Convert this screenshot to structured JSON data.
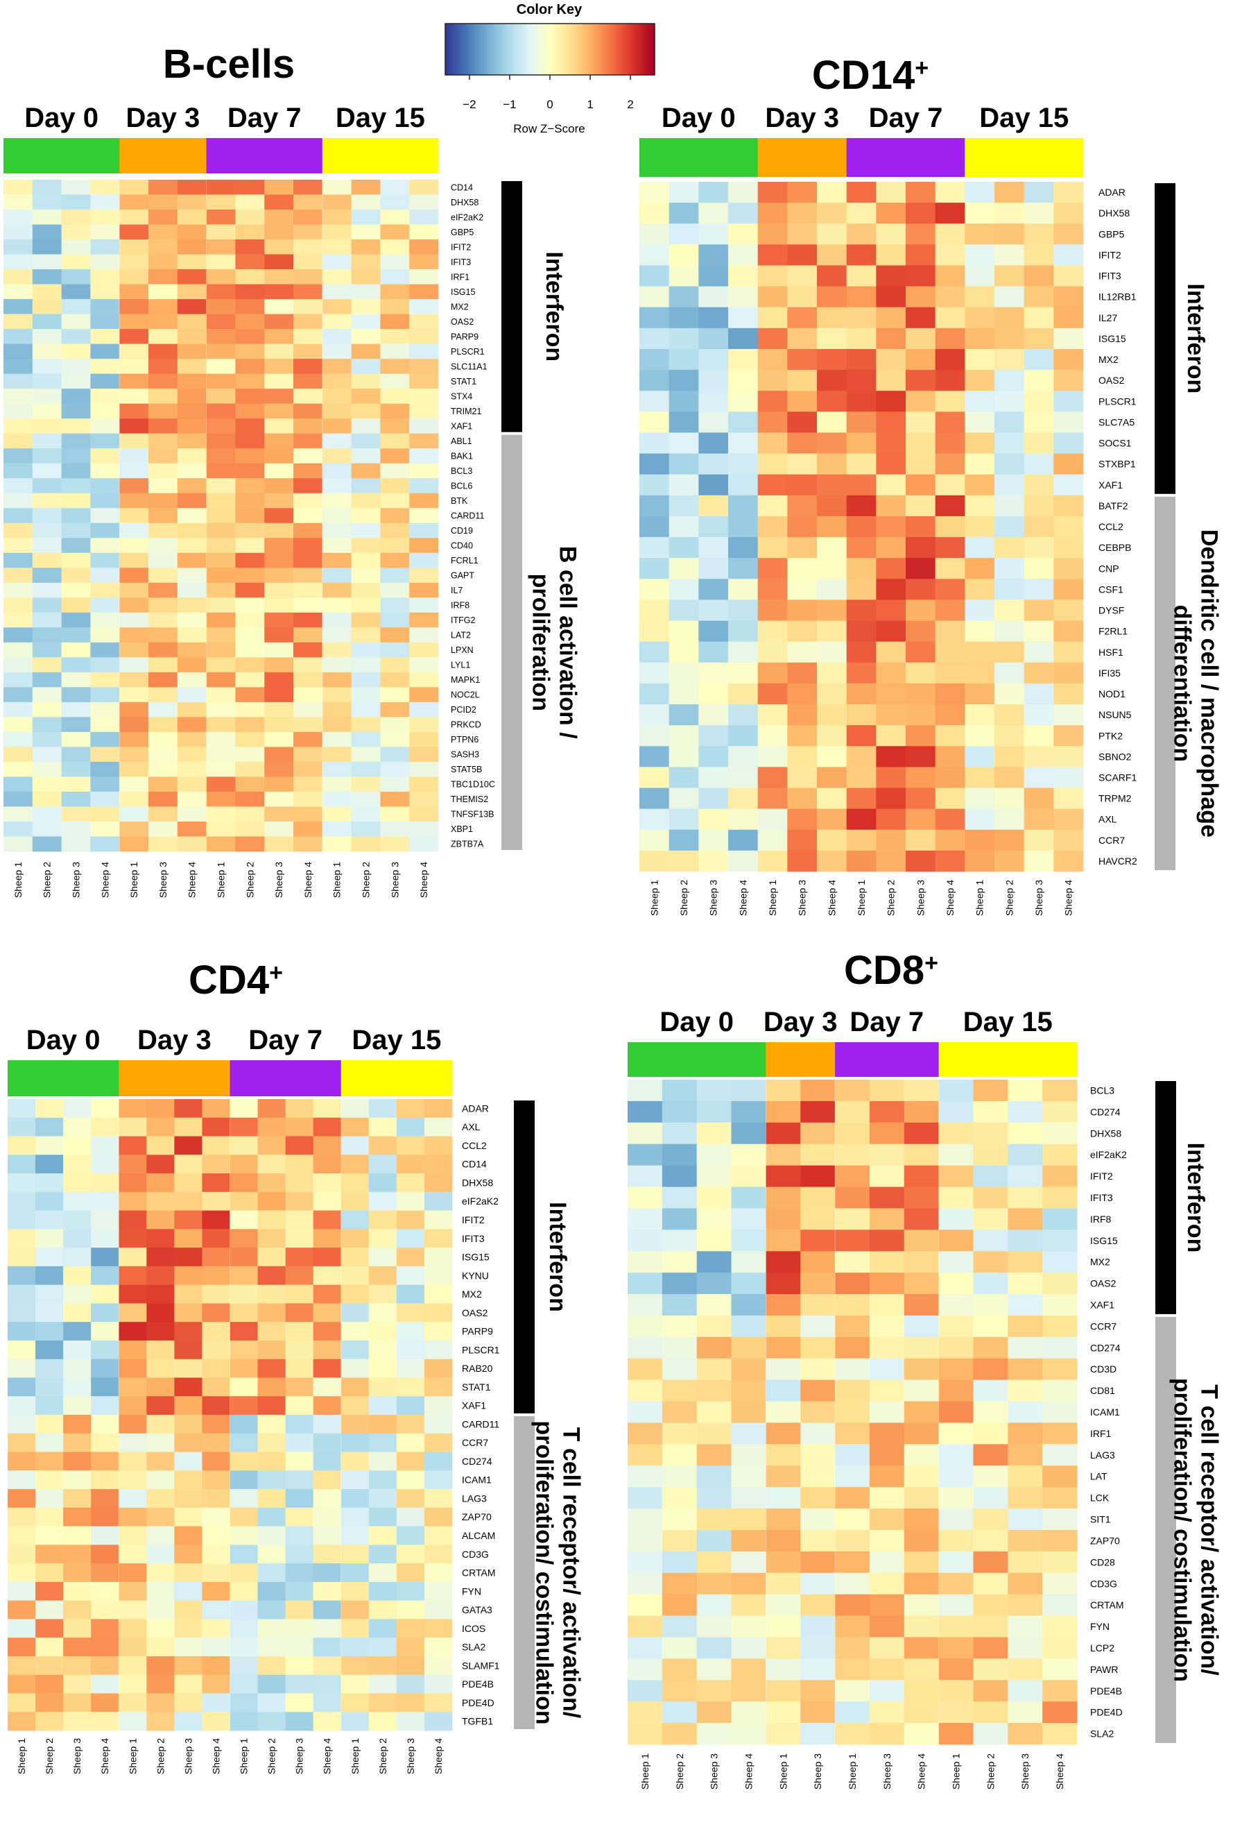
{
  "color_key": {
    "title": "Color Key",
    "xlabel": "Row Z−Score",
    "ticks": [
      "−2",
      "−1",
      "0",
      "1",
      "2"
    ],
    "range": [
      -2.6,
      2.6
    ],
    "colors": [
      "#313695",
      "#4575b4",
      "#74add1",
      "#abd9e9",
      "#e0f3f8",
      "#ffffbf",
      "#fee090",
      "#fdae61",
      "#f46d43",
      "#d73027",
      "#a50026"
    ]
  },
  "chart_data": [
    {
      "type": "heatmap",
      "title": "B-cells",
      "title_sup": "",
      "days": [
        {
          "label": "Day 0",
          "color": "#33cc33"
        },
        {
          "label": "Day 3",
          "color": "#ffa500"
        },
        {
          "label": "Day 7",
          "color": "#a020f0"
        },
        {
          "label": "Day 15",
          "color": "#ffff00"
        }
      ],
      "day_samples": [
        4,
        3,
        4,
        4
      ],
      "samples": [
        "Sheep 1",
        "Sheep 2",
        "Sheep 3",
        "Sheep 4",
        "Sheep 1",
        "Sheep 3",
        "Sheep 4",
        "Sheep 1",
        "Sheep 2",
        "Sheep 3",
        "Sheep 4",
        "Sheep 1",
        "Sheep 2",
        "Sheep 3",
        "Sheep 4"
      ],
      "genes": [
        "CD14",
        "DHX58",
        "eIF2aK2",
        "GBP5",
        "IFIT2",
        "IFIT3",
        "IRF1",
        "ISG15",
        "MX2",
        "OAS2",
        "PARP9",
        "PLSCR1",
        "SLC11A1",
        "STAT1",
        "STX4",
        "TRIM21",
        "XAF1",
        "ABL1",
        "BAK1",
        "BCL3",
        "BCL6",
        "BTK",
        "CARD11",
        "CD19",
        "CD40",
        "FCRL1",
        "GAPT",
        "IL7",
        "IRF8",
        "ITFG2",
        "LAT2",
        "LPXN",
        "LYL1",
        "MAPK1",
        "NOC2L",
        "PCID2",
        "PRKCD",
        "PTPN6",
        "SASH3",
        "STAT5B",
        "TBC1D10C",
        "THEMIS2",
        "TNFSF13B",
        "XBP1",
        "ZBTB7A"
      ],
      "groups": [
        {
          "label": "Interferon",
          "n": 17,
          "color": "#000000"
        },
        {
          "label": "B cell activation / proliferation",
          "n": 28,
          "color": "#b5b5b5"
        }
      ],
      "profile": [
        [
          -0.6,
          0.9,
          0.8,
          0.2
        ],
        [
          -0.5,
          0.4,
          0.7,
          0.1
        ]
      ]
    },
    {
      "type": "heatmap",
      "title": "CD14",
      "title_sup": "+",
      "days": [
        {
          "label": "Day 0",
          "color": "#33cc33"
        },
        {
          "label": "Day 3",
          "color": "#ffa500"
        },
        {
          "label": "Day 7",
          "color": "#a020f0"
        },
        {
          "label": "Day 15",
          "color": "#ffff00"
        }
      ],
      "day_samples": [
        4,
        3,
        4,
        4
      ],
      "samples": [
        "Sheep 1",
        "Sheep 2",
        "Sheep 3",
        "Sheep 4",
        "Sheep 1",
        "Sheep 3",
        "Sheep 4",
        "Sheep 1",
        "Sheep 2",
        "Sheep 3",
        "Sheep 4",
        "Sheep 1",
        "Sheep 2",
        "Sheep 3",
        "Sheep 4"
      ],
      "genes": [
        "ADAR",
        "DHX58",
        "GBP5",
        "IFIT2",
        "IFIT3",
        "IL12RB1",
        "IL27",
        "ISG15",
        "MX2",
        "OAS2",
        "PLSCR1",
        "SLC7A5",
        "SOCS1",
        "STXBP1",
        "XAF1",
        "BATF2",
        "CCL2",
        "CEBPB",
        "CNP",
        "CSF1",
        "DYSF",
        "F2RL1",
        "HSF1",
        "IFI35",
        "NOD1",
        "NSUN5",
        "PTK2",
        "SBNO2",
        "SCARF1",
        "TRPM2",
        "AXL",
        "CCR7",
        "HAVCR2"
      ],
      "groups": [
        {
          "label": "Interferon",
          "n": 15,
          "color": "#000000"
        },
        {
          "label": "Dendritic cell / macrophage differentiation",
          "n": 18,
          "color": "#b5b5b5"
        }
      ],
      "profile": [
        [
          -0.8,
          1.0,
          1.1,
          0.1
        ],
        [
          -0.6,
          0.6,
          1.3,
          0.2
        ]
      ]
    },
    {
      "type": "heatmap",
      "title": "CD4",
      "title_sup": "+",
      "days": [
        {
          "label": "Day 0",
          "color": "#33cc33"
        },
        {
          "label": "Day 3",
          "color": "#ffa500"
        },
        {
          "label": "Day 7",
          "color": "#a020f0"
        },
        {
          "label": "Day 15",
          "color": "#ffff00"
        }
      ],
      "day_samples": [
        4,
        4,
        4,
        4
      ],
      "samples": [
        "Sheep 1",
        "Sheep 2",
        "Sheep 3",
        "Sheep 4",
        "Sheep 1",
        "Sheep 2",
        "Sheep 3",
        "Sheep 4",
        "Sheep 1",
        "Sheep 2",
        "Sheep 3",
        "Sheep 4",
        "Sheep 1",
        "Sheep 2",
        "Sheep 3",
        "Sheep 4"
      ],
      "genes": [
        "ADAR",
        "AXL",
        "CCL2",
        "CD14",
        "DHX58",
        "eIF2aK2",
        "IFIT2",
        "IFIT3",
        "ISG15",
        "KYNU",
        "MX2",
        "OAS2",
        "PARP9",
        "PLSCR1",
        "RAB20",
        "STAT1",
        "XAF1",
        "CARD11",
        "CCR7",
        "CD274",
        "ICAM1",
        "LAG3",
        "ZAP70",
        "ALCAM",
        "CD3G",
        "CRTAM",
        "FYN",
        "GATA3",
        "ICOS",
        "SLA2",
        "SLAMF1",
        "PDE4B",
        "PDE4D",
        "TGFB1"
      ],
      "groups": [
        {
          "label": "Interferon",
          "n": 17,
          "color": "#000000"
        },
        {
          "label": "T cell receptor/ activation/ proliferation/ costimulation",
          "n": 17,
          "color": "#b5b5b5"
        }
      ],
      "profile": [
        [
          -0.7,
          1.2,
          0.8,
          -0.1
        ],
        [
          0.5,
          0.3,
          -0.3,
          -0.1
        ]
      ]
    },
    {
      "type": "heatmap",
      "title": "CD8",
      "title_sup": "+",
      "days": [
        {
          "label": "Day 0",
          "color": "#33cc33"
        },
        {
          "label": "Day 3",
          "color": "#ffa500"
        },
        {
          "label": "Day 7",
          "color": "#a020f0"
        },
        {
          "label": "Day 15",
          "color": "#ffff00"
        }
      ],
      "day_samples": [
        4,
        2,
        3,
        4
      ],
      "samples": [
        "Sheep 1",
        "Sheep 2",
        "Sheep 3",
        "Sheep 4",
        "Sheep 1",
        "Sheep 3",
        "Sheep 1",
        "Sheep 3",
        "Sheep 4",
        "Sheep 1",
        "Sheep 2",
        "Sheep 3",
        "Sheep 4"
      ],
      "genes": [
        "BCL3",
        "CD274",
        "DHX58",
        "eIF2aK2",
        "IFIT2",
        "IFIT3",
        "IRF8",
        "ISG15",
        "MX2",
        "OAS2",
        "XAF1",
        "CCR7",
        "CD274",
        "CD3D",
        "CD81",
        "ICAM1",
        "IRF1",
        "LAG3",
        "LAT",
        "LCK",
        "SIT1",
        "ZAP70",
        "CD28",
        "CD3G",
        "CRTAM",
        "FYN",
        "LCP2",
        "PAWR",
        "PDE4B",
        "PDE4D",
        "SLA2"
      ],
      "groups": [
        {
          "label": "Interferon",
          "n": 11,
          "color": "#000000"
        },
        {
          "label": "T cell receptor/ activation/ proliferation/ costimulation",
          "n": 20,
          "color": "#b5b5b5"
        }
      ],
      "profile": [
        [
          -0.7,
          1.3,
          0.9,
          0.0
        ],
        [
          0.1,
          0.2,
          0.3,
          0.4
        ]
      ]
    }
  ]
}
